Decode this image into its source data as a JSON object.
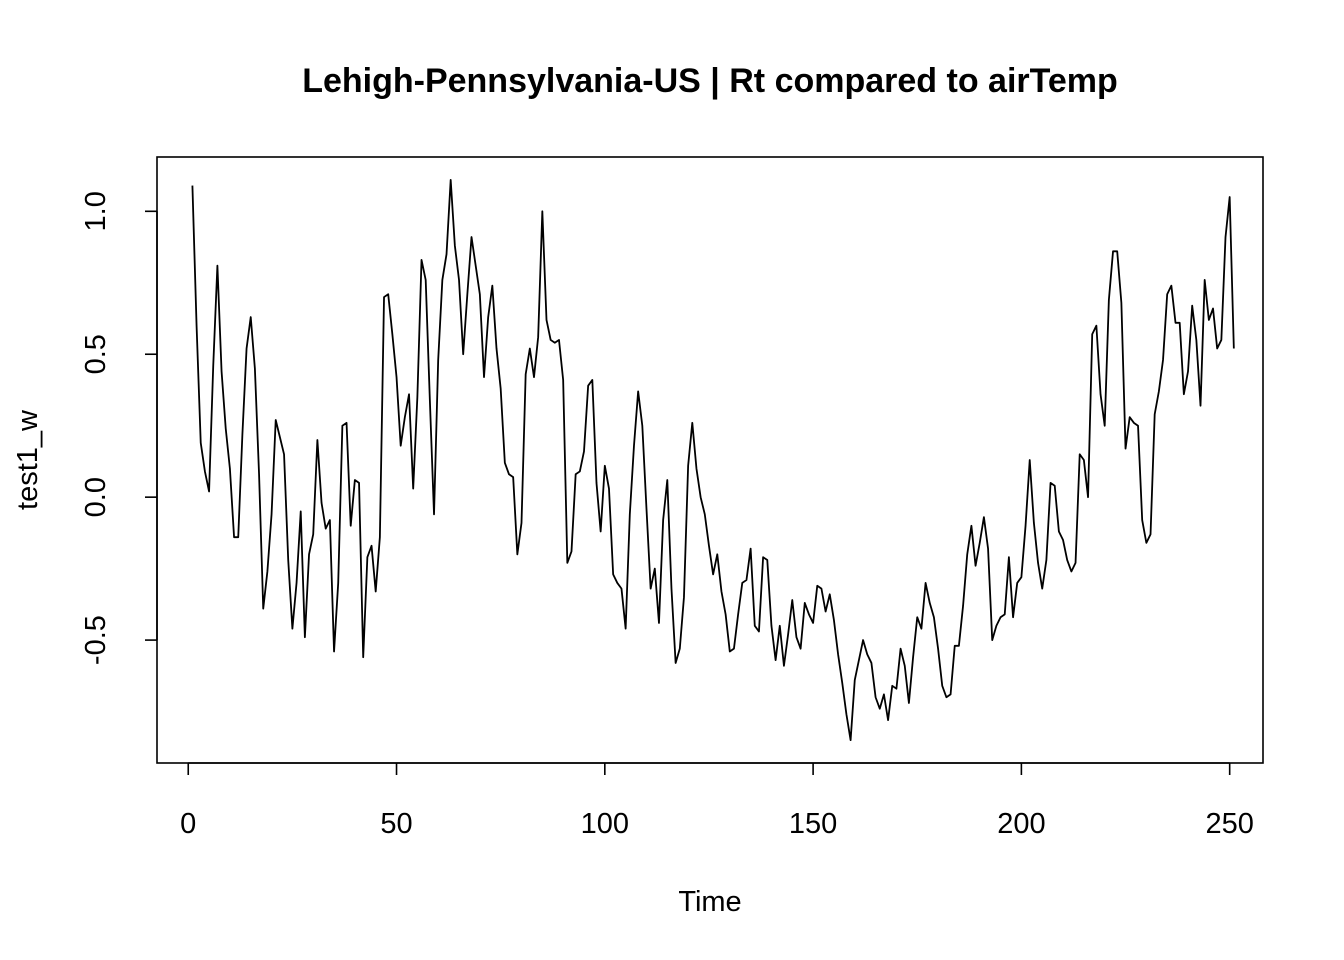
{
  "chart_data": {
    "type": "line",
    "title": "Lehigh-Pennsylvania-US | Rt compared to airTemp",
    "xlabel": "Time",
    "ylabel": "test1_w",
    "xlim": [
      -7.5,
      258
    ],
    "ylim": [
      -0.93,
      1.19
    ],
    "x_ticks": [
      0,
      50,
      100,
      150,
      200,
      250
    ],
    "x_tick_labels": [
      "0",
      "50",
      "100",
      "150",
      "200",
      "250"
    ],
    "y_ticks": [
      -0.5,
      0.0,
      0.5,
      1.0
    ],
    "y_tick_labels": [
      "-0.5",
      "0.0",
      "0.5",
      "1.0"
    ],
    "grid": false,
    "legend": "none",
    "series": [
      {
        "color": "#000000",
        "x_start": 1,
        "x_step": 1,
        "values": [
          1.09,
          0.6,
          0.19,
          0.09,
          0.02,
          0.46,
          0.81,
          0.44,
          0.24,
          0.1,
          -0.14,
          -0.14,
          0.22,
          0.52,
          0.63,
          0.45,
          0.08,
          -0.39,
          -0.26,
          -0.06,
          0.27,
          0.21,
          0.15,
          -0.22,
          -0.46,
          -0.3,
          -0.05,
          -0.49,
          -0.2,
          -0.13,
          0.2,
          -0.02,
          -0.11,
          -0.08,
          -0.54,
          -0.3,
          0.25,
          0.26,
          -0.1,
          0.06,
          0.05,
          -0.56,
          -0.21,
          -0.17,
          -0.33,
          -0.14,
          0.7,
          0.71,
          0.57,
          0.42,
          0.18,
          0.28,
          0.36,
          0.03,
          0.35,
          0.83,
          0.76,
          0.34,
          -0.06,
          0.48,
          0.76,
          0.85,
          1.11,
          0.88,
          0.76,
          0.5,
          0.71,
          0.91,
          0.81,
          0.71,
          0.42,
          0.63,
          0.74,
          0.52,
          0.38,
          0.12,
          0.08,
          0.07,
          -0.2,
          -0.09,
          0.43,
          0.52,
          0.42,
          0.56,
          1.0,
          0.62,
          0.55,
          0.54,
          0.55,
          0.41,
          -0.23,
          -0.19,
          0.08,
          0.09,
          0.16,
          0.39,
          0.41,
          0.05,
          -0.12,
          0.11,
          0.03,
          -0.27,
          -0.3,
          -0.32,
          -0.46,
          -0.06,
          0.18,
          0.37,
          0.25,
          -0.04,
          -0.32,
          -0.25,
          -0.44,
          -0.08,
          0.06,
          -0.32,
          -0.58,
          -0.53,
          -0.35,
          0.11,
          0.26,
          0.1,
          0.0,
          -0.06,
          -0.17,
          -0.27,
          -0.2,
          -0.33,
          -0.41,
          -0.54,
          -0.53,
          -0.41,
          -0.3,
          -0.29,
          -0.18,
          -0.45,
          -0.47,
          -0.21,
          -0.22,
          -0.45,
          -0.57,
          -0.45,
          -0.59,
          -0.48,
          -0.36,
          -0.49,
          -0.53,
          -0.37,
          -0.41,
          -0.44,
          -0.31,
          -0.32,
          -0.4,
          -0.34,
          -0.43,
          -0.55,
          -0.65,
          -0.76,
          -0.85,
          -0.64,
          -0.57,
          -0.5,
          -0.55,
          -0.58,
          -0.7,
          -0.74,
          -0.69,
          -0.78,
          -0.66,
          -0.67,
          -0.53,
          -0.59,
          -0.72,
          -0.56,
          -0.42,
          -0.46,
          -0.3,
          -0.37,
          -0.42,
          -0.53,
          -0.66,
          -0.7,
          -0.69,
          -0.52,
          -0.52,
          -0.38,
          -0.2,
          -0.1,
          -0.24,
          -0.16,
          -0.07,
          -0.18,
          -0.5,
          -0.45,
          -0.42,
          -0.41,
          -0.21,
          -0.42,
          -0.3,
          -0.28,
          -0.1,
          0.13,
          -0.09,
          -0.23,
          -0.32,
          -0.22,
          0.05,
          0.04,
          -0.12,
          -0.15,
          -0.22,
          -0.26,
          -0.23,
          0.15,
          0.13,
          0.0,
          0.57,
          0.6,
          0.36,
          0.25,
          0.69,
          0.86,
          0.86,
          0.68,
          0.17,
          0.28,
          0.26,
          0.25,
          -0.08,
          -0.16,
          -0.13,
          0.29,
          0.37,
          0.48,
          0.71,
          0.74,
          0.61,
          0.61,
          0.36,
          0.44,
          0.67,
          0.55,
          0.32,
          0.76,
          0.62,
          0.66,
          0.52,
          0.55,
          0.91,
          1.05,
          0.52
        ]
      }
    ]
  }
}
